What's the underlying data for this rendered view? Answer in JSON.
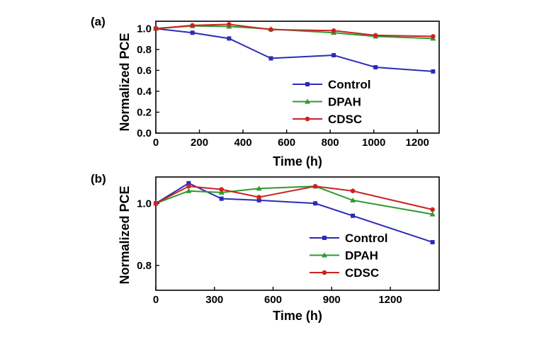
{
  "chart_data": [
    {
      "type": "line",
      "panel": "(a)",
      "xlabel": "Time (h)",
      "ylabel": "Normalized PCE",
      "xlim": [
        0,
        1300
      ],
      "ylim": [
        0.0,
        1.07
      ],
      "xticks": [
        0,
        200,
        400,
        600,
        800,
        1000,
        1200
      ],
      "yticks": [
        0.0,
        0.2,
        0.4,
        0.6,
        0.8,
        1.0
      ],
      "ytick_format": "fixed1",
      "grid": false,
      "legend": "bottom-right",
      "series": [
        {
          "name": "Control",
          "color": "#2b2bb8",
          "marker": "square",
          "x": [
            0,
            168,
            336,
            528,
            816,
            1008,
            1272
          ],
          "y": [
            1.0,
            0.96,
            0.905,
            0.715,
            0.745,
            0.63,
            0.59
          ]
        },
        {
          "name": "DPAH",
          "color": "#2e9a2e",
          "marker": "triangle",
          "x": [
            0,
            168,
            336,
            528,
            816,
            1008,
            1272
          ],
          "y": [
            1.0,
            1.025,
            1.02,
            0.995,
            0.96,
            0.925,
            0.905
          ]
        },
        {
          "name": "CDSC",
          "color": "#cc2222",
          "marker": "circle",
          "x": [
            0,
            168,
            336,
            528,
            816,
            1008,
            1272
          ],
          "y": [
            1.0,
            1.03,
            1.04,
            0.99,
            0.98,
            0.935,
            0.925
          ]
        }
      ]
    },
    {
      "type": "line",
      "panel": "(b)",
      "xlabel": "Time (h)",
      "ylabel": "Normalized PCE",
      "xlim": [
        0,
        1450
      ],
      "ylim": [
        0.72,
        1.085
      ],
      "xticks": [
        0,
        300,
        600,
        900,
        1200
      ],
      "yticks": [
        0.8,
        1.0
      ],
      "ytick_format": "fixed1",
      "grid": false,
      "legend": "bottom-right",
      "series": [
        {
          "name": "Control",
          "color": "#2b2bb8",
          "marker": "square",
          "x": [
            0,
            168,
            336,
            528,
            816,
            1008,
            1416
          ],
          "y": [
            1.0,
            1.065,
            1.015,
            1.01,
            1.0,
            0.96,
            0.875
          ]
        },
        {
          "name": "DPAH",
          "color": "#2e9a2e",
          "marker": "triangle",
          "x": [
            0,
            168,
            336,
            528,
            816,
            1008,
            1416
          ],
          "y": [
            1.0,
            1.04,
            1.035,
            1.048,
            1.055,
            1.01,
            0.965
          ]
        },
        {
          "name": "CDSC",
          "color": "#cc2222",
          "marker": "circle",
          "x": [
            0,
            168,
            336,
            528,
            816,
            1008,
            1416
          ],
          "y": [
            1.0,
            1.055,
            1.045,
            1.02,
            1.055,
            1.04,
            0.98
          ]
        }
      ]
    }
  ]
}
